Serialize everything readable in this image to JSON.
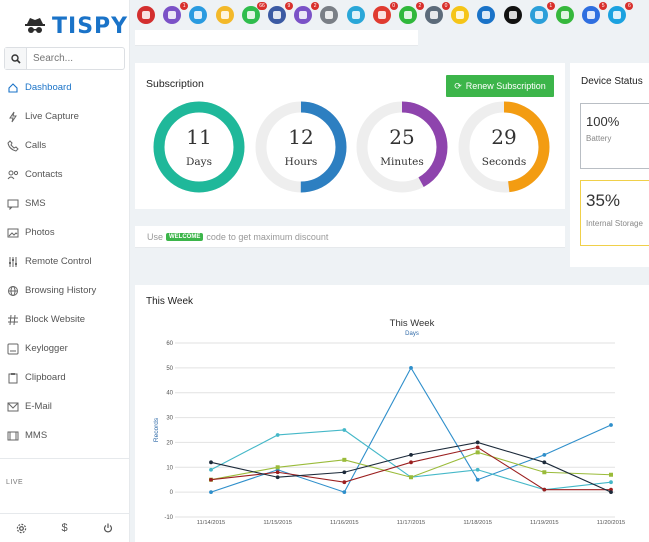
{
  "brand": {
    "name": "TISPY"
  },
  "search": {
    "placeholder": "Search..."
  },
  "nav": [
    {
      "label": "Dashboard",
      "icon": "home-icon",
      "active": true
    },
    {
      "label": "Live Capture",
      "icon": "bolt-icon"
    },
    {
      "label": "Calls",
      "icon": "phone-icon"
    },
    {
      "label": "Contacts",
      "icon": "contacts-icon"
    },
    {
      "label": "SMS",
      "icon": "sms-icon"
    },
    {
      "label": "Photos",
      "icon": "image-icon"
    },
    {
      "label": "Remote Control",
      "icon": "sliders-icon"
    },
    {
      "label": "Browsing History",
      "icon": "globe-icon"
    },
    {
      "label": "Block Website",
      "icon": "hash-icon"
    },
    {
      "label": "Keylogger",
      "icon": "keyboard-icon"
    },
    {
      "label": "Clipboard",
      "icon": "clipboard-icon"
    },
    {
      "label": "E-Mail",
      "icon": "mail-icon"
    },
    {
      "label": "MMS",
      "icon": "film-icon"
    }
  ],
  "live_label": "LIVE",
  "apps": [
    {
      "name": "youtube-app-icon",
      "color": "#d32f2f",
      "badge": ""
    },
    {
      "name": "viber-app-icon",
      "color": "#7b52c7",
      "badge": "1"
    },
    {
      "name": "email-app-icon",
      "color": "#2a9be0",
      "badge": ""
    },
    {
      "name": "notes-app-icon",
      "color": "#f3b92a",
      "badge": ""
    },
    {
      "name": "whatsapp-app-icon",
      "color": "#2fbd4d",
      "badge": "66"
    },
    {
      "name": "facebook-app-icon",
      "color": "#3b5aa3",
      "badge": "9"
    },
    {
      "name": "viber2-app-icon",
      "color": "#7b52c7",
      "badge": "2"
    },
    {
      "name": "calendar-app-icon",
      "color": "#7a7f86",
      "badge": ""
    },
    {
      "name": "messages-app-icon",
      "color": "#2aa7d8",
      "badge": ""
    },
    {
      "name": "tinder-app-icon",
      "color": "#e03b30",
      "badge": "0"
    },
    {
      "name": "wechat-app-icon",
      "color": "#30b83b",
      "badge": "2"
    },
    {
      "name": "instagram-app-icon",
      "color": "#5c6b7a",
      "badge": "0"
    },
    {
      "name": "snapchat-app-icon",
      "color": "#f5c518",
      "badge": ""
    },
    {
      "name": "zalo-app-icon",
      "color": "#1a73c8",
      "badge": ""
    },
    {
      "name": "tiktok-app-icon",
      "color": "#111111",
      "badge": ""
    },
    {
      "name": "telegram-app-icon",
      "color": "#2b9fd9",
      "badge": "1"
    },
    {
      "name": "line-app-icon",
      "color": "#36b83c",
      "badge": ""
    },
    {
      "name": "messenger-app-icon",
      "color": "#2f6fe0",
      "badge": "5"
    },
    {
      "name": "skype-app-icon",
      "color": "#1ba2e0",
      "badge": "6"
    }
  ],
  "subscription": {
    "title": "Subscription",
    "renew_label": "Renew Subscription",
    "rings": [
      {
        "value": "11",
        "label": "Days",
        "fraction": 1.0,
        "color": "#1fb89a"
      },
      {
        "value": "12",
        "label": "Hours",
        "fraction": 0.5,
        "color": "#2d7fc1"
      },
      {
        "value": "25",
        "label": "Minutes",
        "fraction": 0.42,
        "color": "#8e44ad"
      },
      {
        "value": "29",
        "label": "Seconds",
        "fraction": 0.48,
        "color": "#f39c12"
      }
    ]
  },
  "promo": {
    "prefix": "Use",
    "code": "WELCOME",
    "suffix": "code to get maximum discount"
  },
  "device_status": {
    "title": "Device Status",
    "battery_value": "100%",
    "battery_label": "Battery",
    "storage_value": "35%",
    "storage_label": "Internal Storage"
  },
  "week": {
    "title": "This Week"
  },
  "chart_data": {
    "type": "line",
    "title": "This Week",
    "subtitle": "Days",
    "ylabel": "Records",
    "ylim": [
      -10,
      60
    ],
    "yticks": [
      -10,
      0,
      10,
      20,
      30,
      40,
      50,
      60
    ],
    "categories": [
      "11/14/2015",
      "11/15/2015",
      "11/16/2015",
      "11/17/2015",
      "11/18/2015",
      "11/19/2015",
      "11/20/2015"
    ],
    "grid": true,
    "series": [
      {
        "color": "#2f8fcb",
        "values": [
          0,
          9,
          0,
          50,
          5,
          15,
          27
        ]
      },
      {
        "color": "#45b8c8",
        "values": [
          9,
          23,
          25,
          6,
          9,
          1,
          4
        ]
      },
      {
        "color": "#9abb3a",
        "values": [
          5,
          10,
          13,
          6,
          16,
          8,
          7
        ]
      },
      {
        "color": "#9b1f1f",
        "values": [
          5,
          8,
          4,
          12,
          18,
          1,
          1
        ]
      },
      {
        "color": "#1c2a3a",
        "values": [
          12,
          6,
          8,
          15,
          20,
          12,
          0
        ]
      }
    ]
  }
}
